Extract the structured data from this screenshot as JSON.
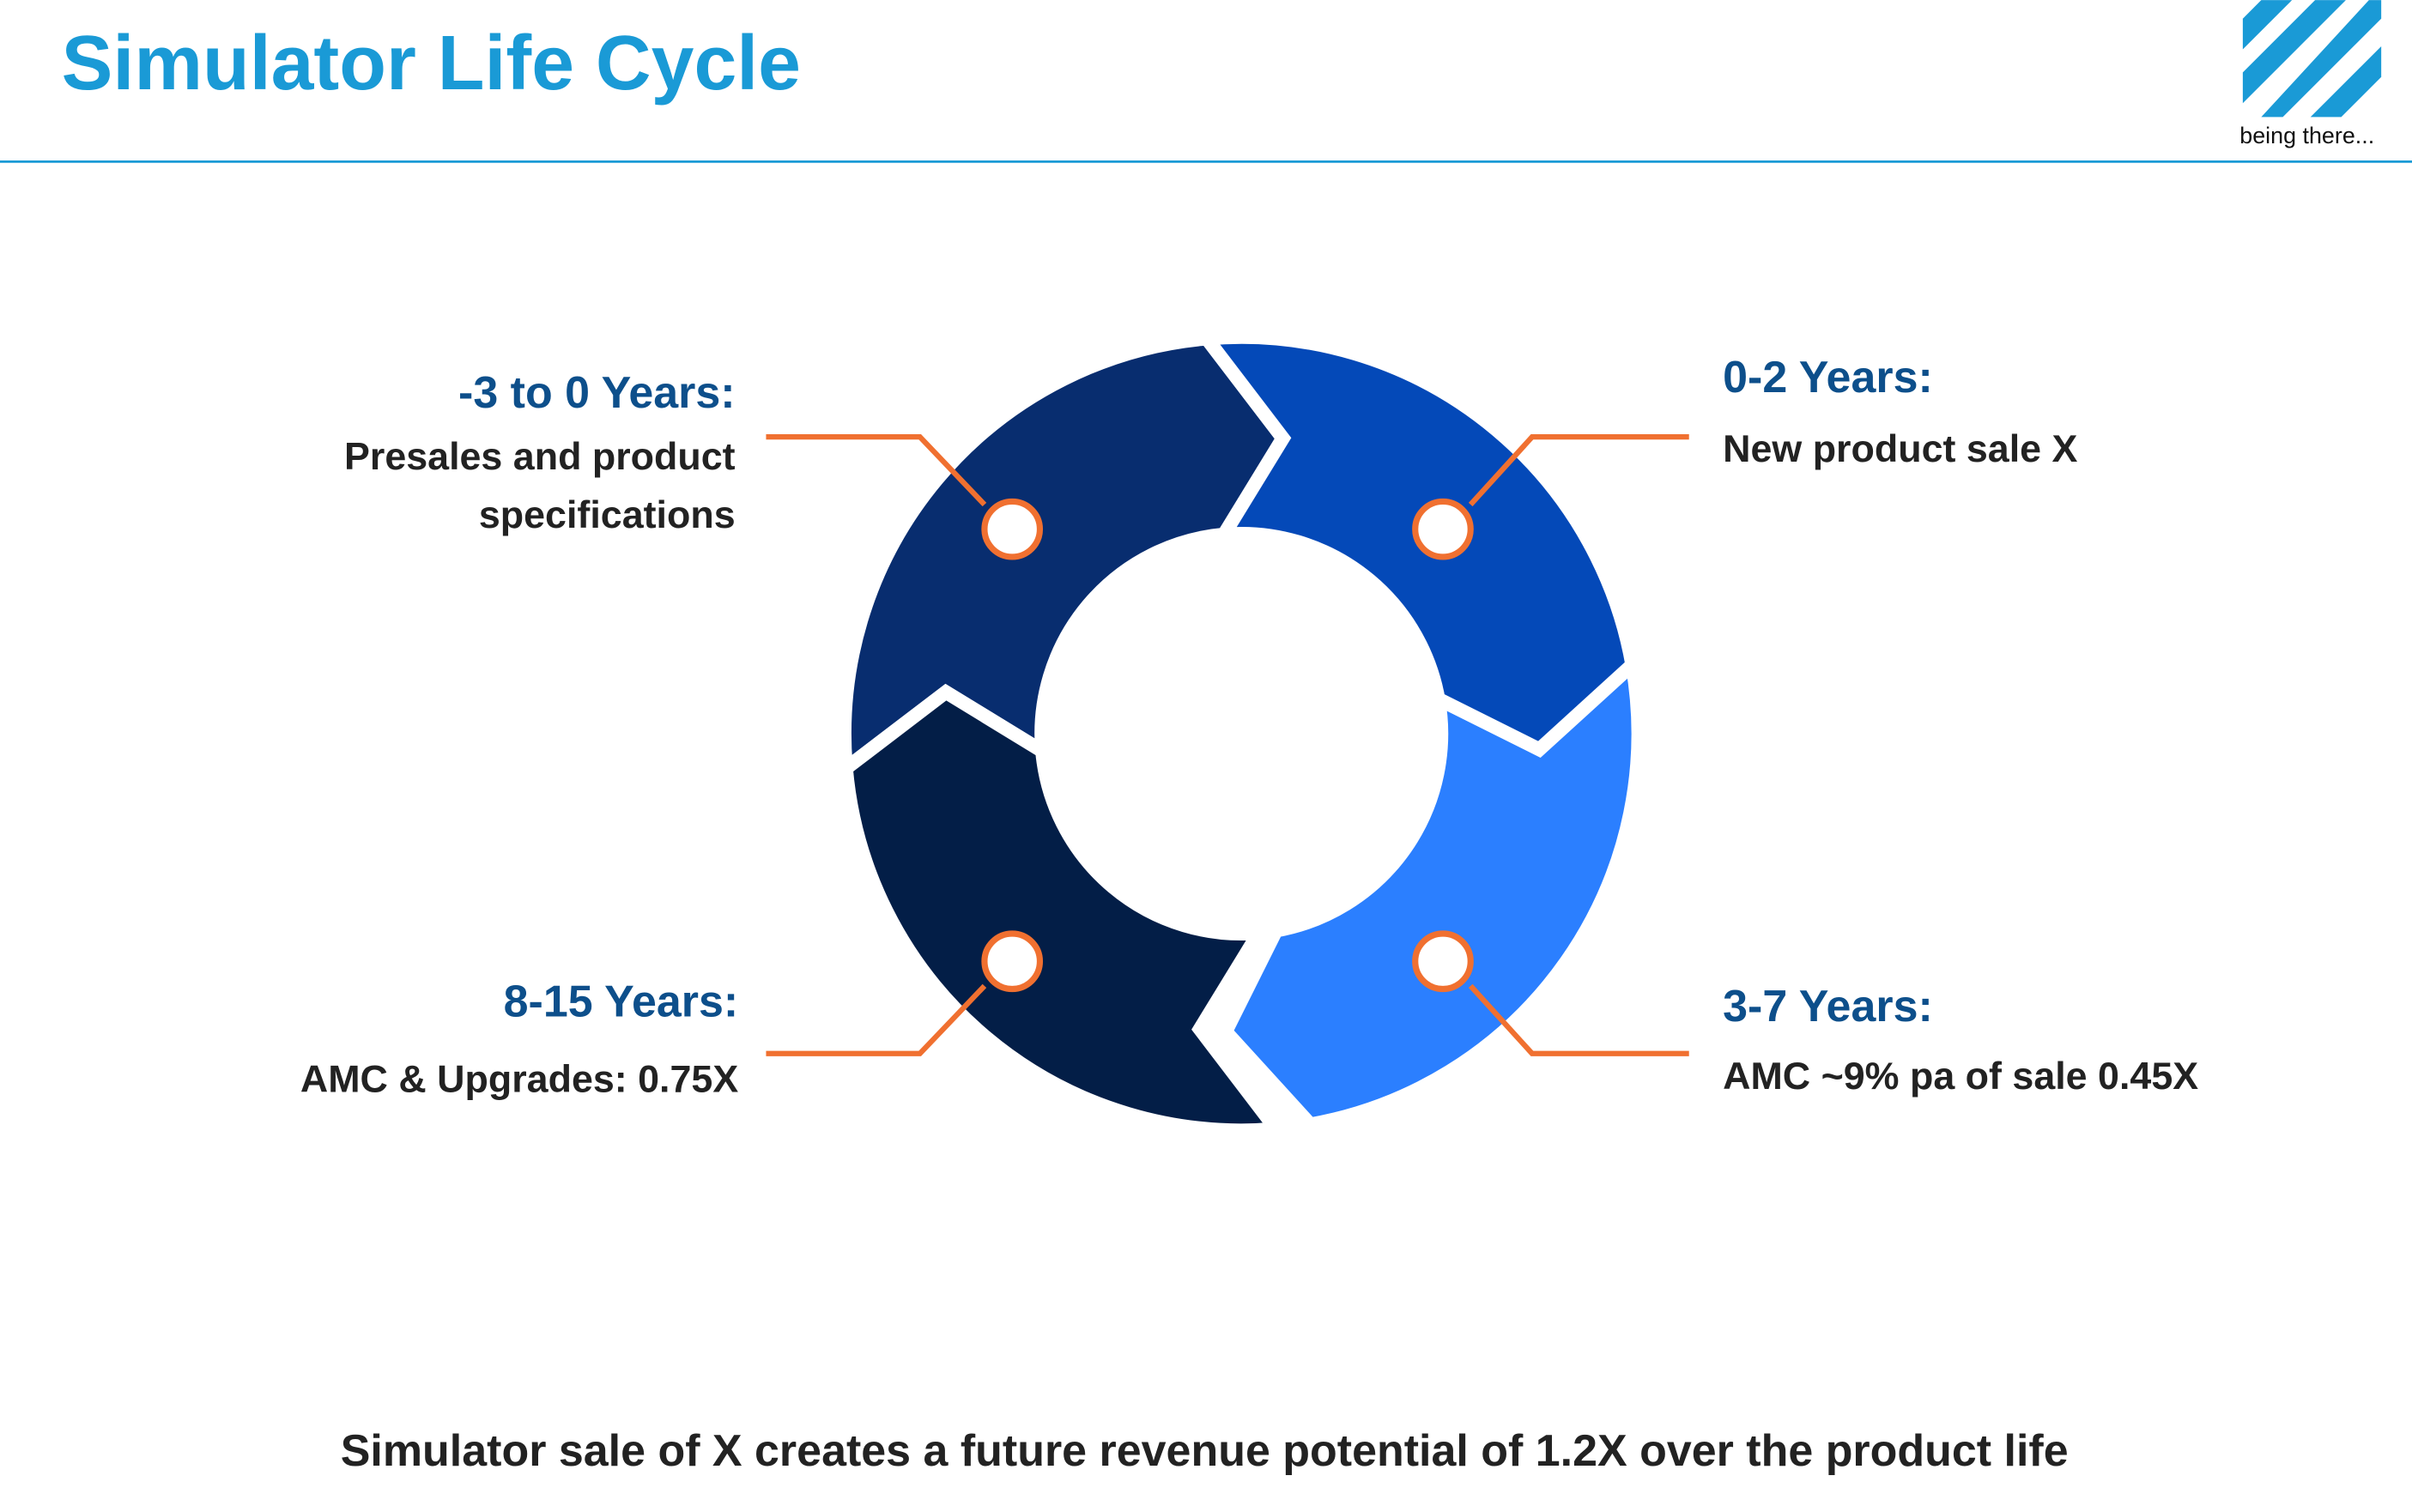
{
  "header": {
    "title": "Simulator Life Cycle"
  },
  "logo": {
    "tagline": "being there..."
  },
  "stages": [
    {
      "heading": "-3 to 0 Years:",
      "description": [
        "Presales and product",
        "specifications"
      ]
    },
    {
      "heading": "0-2 Years:",
      "description": [
        "New product sale X"
      ]
    },
    {
      "heading": "3-7 Years:",
      "description": [
        "AMC ~9% pa of sale 0.45X"
      ]
    },
    {
      "heading": "8-15 Years:",
      "description": [
        "AMC & Upgrades: 0.75X"
      ]
    }
  ],
  "footer": {
    "text": "Simulator sale of X creates a future revenue potential of 1.2X over the product life"
  }
}
